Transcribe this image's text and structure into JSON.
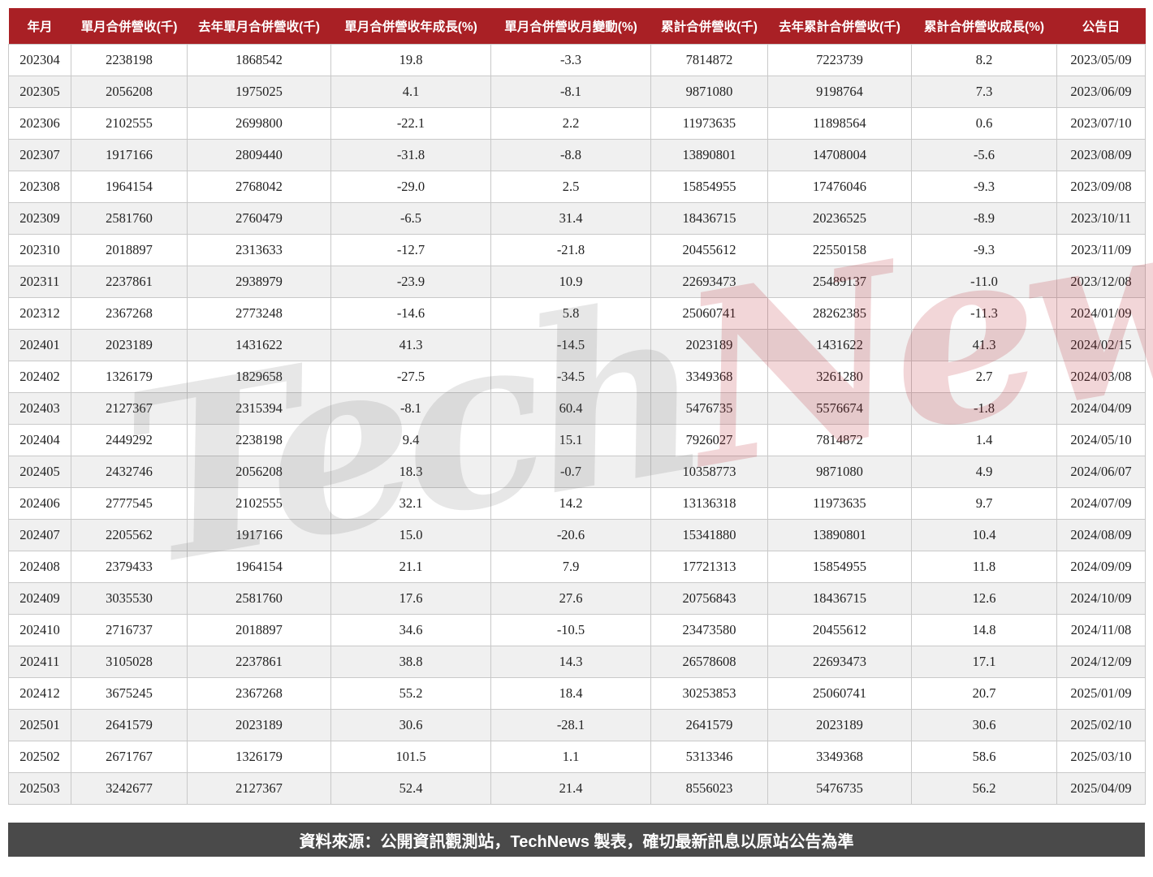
{
  "chart_data": {
    "type": "table",
    "columns": [
      "年月",
      "單月合併營收(千)",
      "去年單月合併營收(千)",
      "單月合併營收年成長(%)",
      "單月合併營收月變動(%)",
      "累計合併營收(千)",
      "去年累計合併營收(千)",
      "累計合併營收成長(%)",
      "公告日"
    ],
    "column_keys": [
      "year-month",
      "monthly-revenue",
      "last-year-monthly-revenue",
      "yoy-growth",
      "mom-change",
      "cumulative-revenue",
      "last-year-cumulative-revenue",
      "cumulative-growth",
      "announcement-date"
    ],
    "rows": [
      [
        "202304",
        "2238198",
        "1868542",
        "19.8",
        "-3.3",
        "7814872",
        "7223739",
        "8.2",
        "2023/05/09"
      ],
      [
        "202305",
        "2056208",
        "1975025",
        "4.1",
        "-8.1",
        "9871080",
        "9198764",
        "7.3",
        "2023/06/09"
      ],
      [
        "202306",
        "2102555",
        "2699800",
        "-22.1",
        "2.2",
        "11973635",
        "11898564",
        "0.6",
        "2023/07/10"
      ],
      [
        "202307",
        "1917166",
        "2809440",
        "-31.8",
        "-8.8",
        "13890801",
        "14708004",
        "-5.6",
        "2023/08/09"
      ],
      [
        "202308",
        "1964154",
        "2768042",
        "-29.0",
        "2.5",
        "15854955",
        "17476046",
        "-9.3",
        "2023/09/08"
      ],
      [
        "202309",
        "2581760",
        "2760479",
        "-6.5",
        "31.4",
        "18436715",
        "20236525",
        "-8.9",
        "2023/10/11"
      ],
      [
        "202310",
        "2018897",
        "2313633",
        "-12.7",
        "-21.8",
        "20455612",
        "22550158",
        "-9.3",
        "2023/11/09"
      ],
      [
        "202311",
        "2237861",
        "2938979",
        "-23.9",
        "10.9",
        "22693473",
        "25489137",
        "-11.0",
        "2023/12/08"
      ],
      [
        "202312",
        "2367268",
        "2773248",
        "-14.6",
        "5.8",
        "25060741",
        "28262385",
        "-11.3",
        "2024/01/09"
      ],
      [
        "202401",
        "2023189",
        "1431622",
        "41.3",
        "-14.5",
        "2023189",
        "1431622",
        "41.3",
        "2024/02/15"
      ],
      [
        "202402",
        "1326179",
        "1829658",
        "-27.5",
        "-34.5",
        "3349368",
        "3261280",
        "2.7",
        "2024/03/08"
      ],
      [
        "202403",
        "2127367",
        "2315394",
        "-8.1",
        "60.4",
        "5476735",
        "5576674",
        "-1.8",
        "2024/04/09"
      ],
      [
        "202404",
        "2449292",
        "2238198",
        "9.4",
        "15.1",
        "7926027",
        "7814872",
        "1.4",
        "2024/05/10"
      ],
      [
        "202405",
        "2432746",
        "2056208",
        "18.3",
        "-0.7",
        "10358773",
        "9871080",
        "4.9",
        "2024/06/07"
      ],
      [
        "202406",
        "2777545",
        "2102555",
        "32.1",
        "14.2",
        "13136318",
        "11973635",
        "9.7",
        "2024/07/09"
      ],
      [
        "202407",
        "2205562",
        "1917166",
        "15.0",
        "-20.6",
        "15341880",
        "13890801",
        "10.4",
        "2024/08/09"
      ],
      [
        "202408",
        "2379433",
        "1964154",
        "21.1",
        "7.9",
        "17721313",
        "15854955",
        "11.8",
        "2024/09/09"
      ],
      [
        "202409",
        "3035530",
        "2581760",
        "17.6",
        "27.6",
        "20756843",
        "18436715",
        "12.6",
        "2024/10/09"
      ],
      [
        "202410",
        "2716737",
        "2018897",
        "34.6",
        "-10.5",
        "23473580",
        "20455612",
        "14.8",
        "2024/11/08"
      ],
      [
        "202411",
        "3105028",
        "2237861",
        "38.8",
        "14.3",
        "26578608",
        "22693473",
        "17.1",
        "2024/12/09"
      ],
      [
        "202412",
        "3675245",
        "2367268",
        "55.2",
        "18.4",
        "30253853",
        "25060741",
        "20.7",
        "2025/01/09"
      ],
      [
        "202501",
        "2641579",
        "2023189",
        "30.6",
        "-28.1",
        "2641579",
        "2023189",
        "30.6",
        "2025/02/10"
      ],
      [
        "202502",
        "2671767",
        "1326179",
        "101.5",
        "1.1",
        "5313346",
        "3349368",
        "58.6",
        "2025/03/10"
      ],
      [
        "202503",
        "3242677",
        "2127367",
        "52.4",
        "21.4",
        "8556023",
        "5476735",
        "56.2",
        "2025/04/09"
      ]
    ]
  },
  "watermark": {
    "part1": "Tech",
    "part2": "News"
  },
  "footer": {
    "text": "資料來源：公開資訊觀測站，TechNews 製表，確切最新訊息以原站公告為準"
  },
  "colors": {
    "header_bg": "#a92025",
    "footer_bg": "#4a4a4a",
    "row_alt": "#f0f0f0",
    "border": "#c9c9c9",
    "watermark_gray": "#5f5f5f",
    "watermark_red": "#b91c28"
  }
}
